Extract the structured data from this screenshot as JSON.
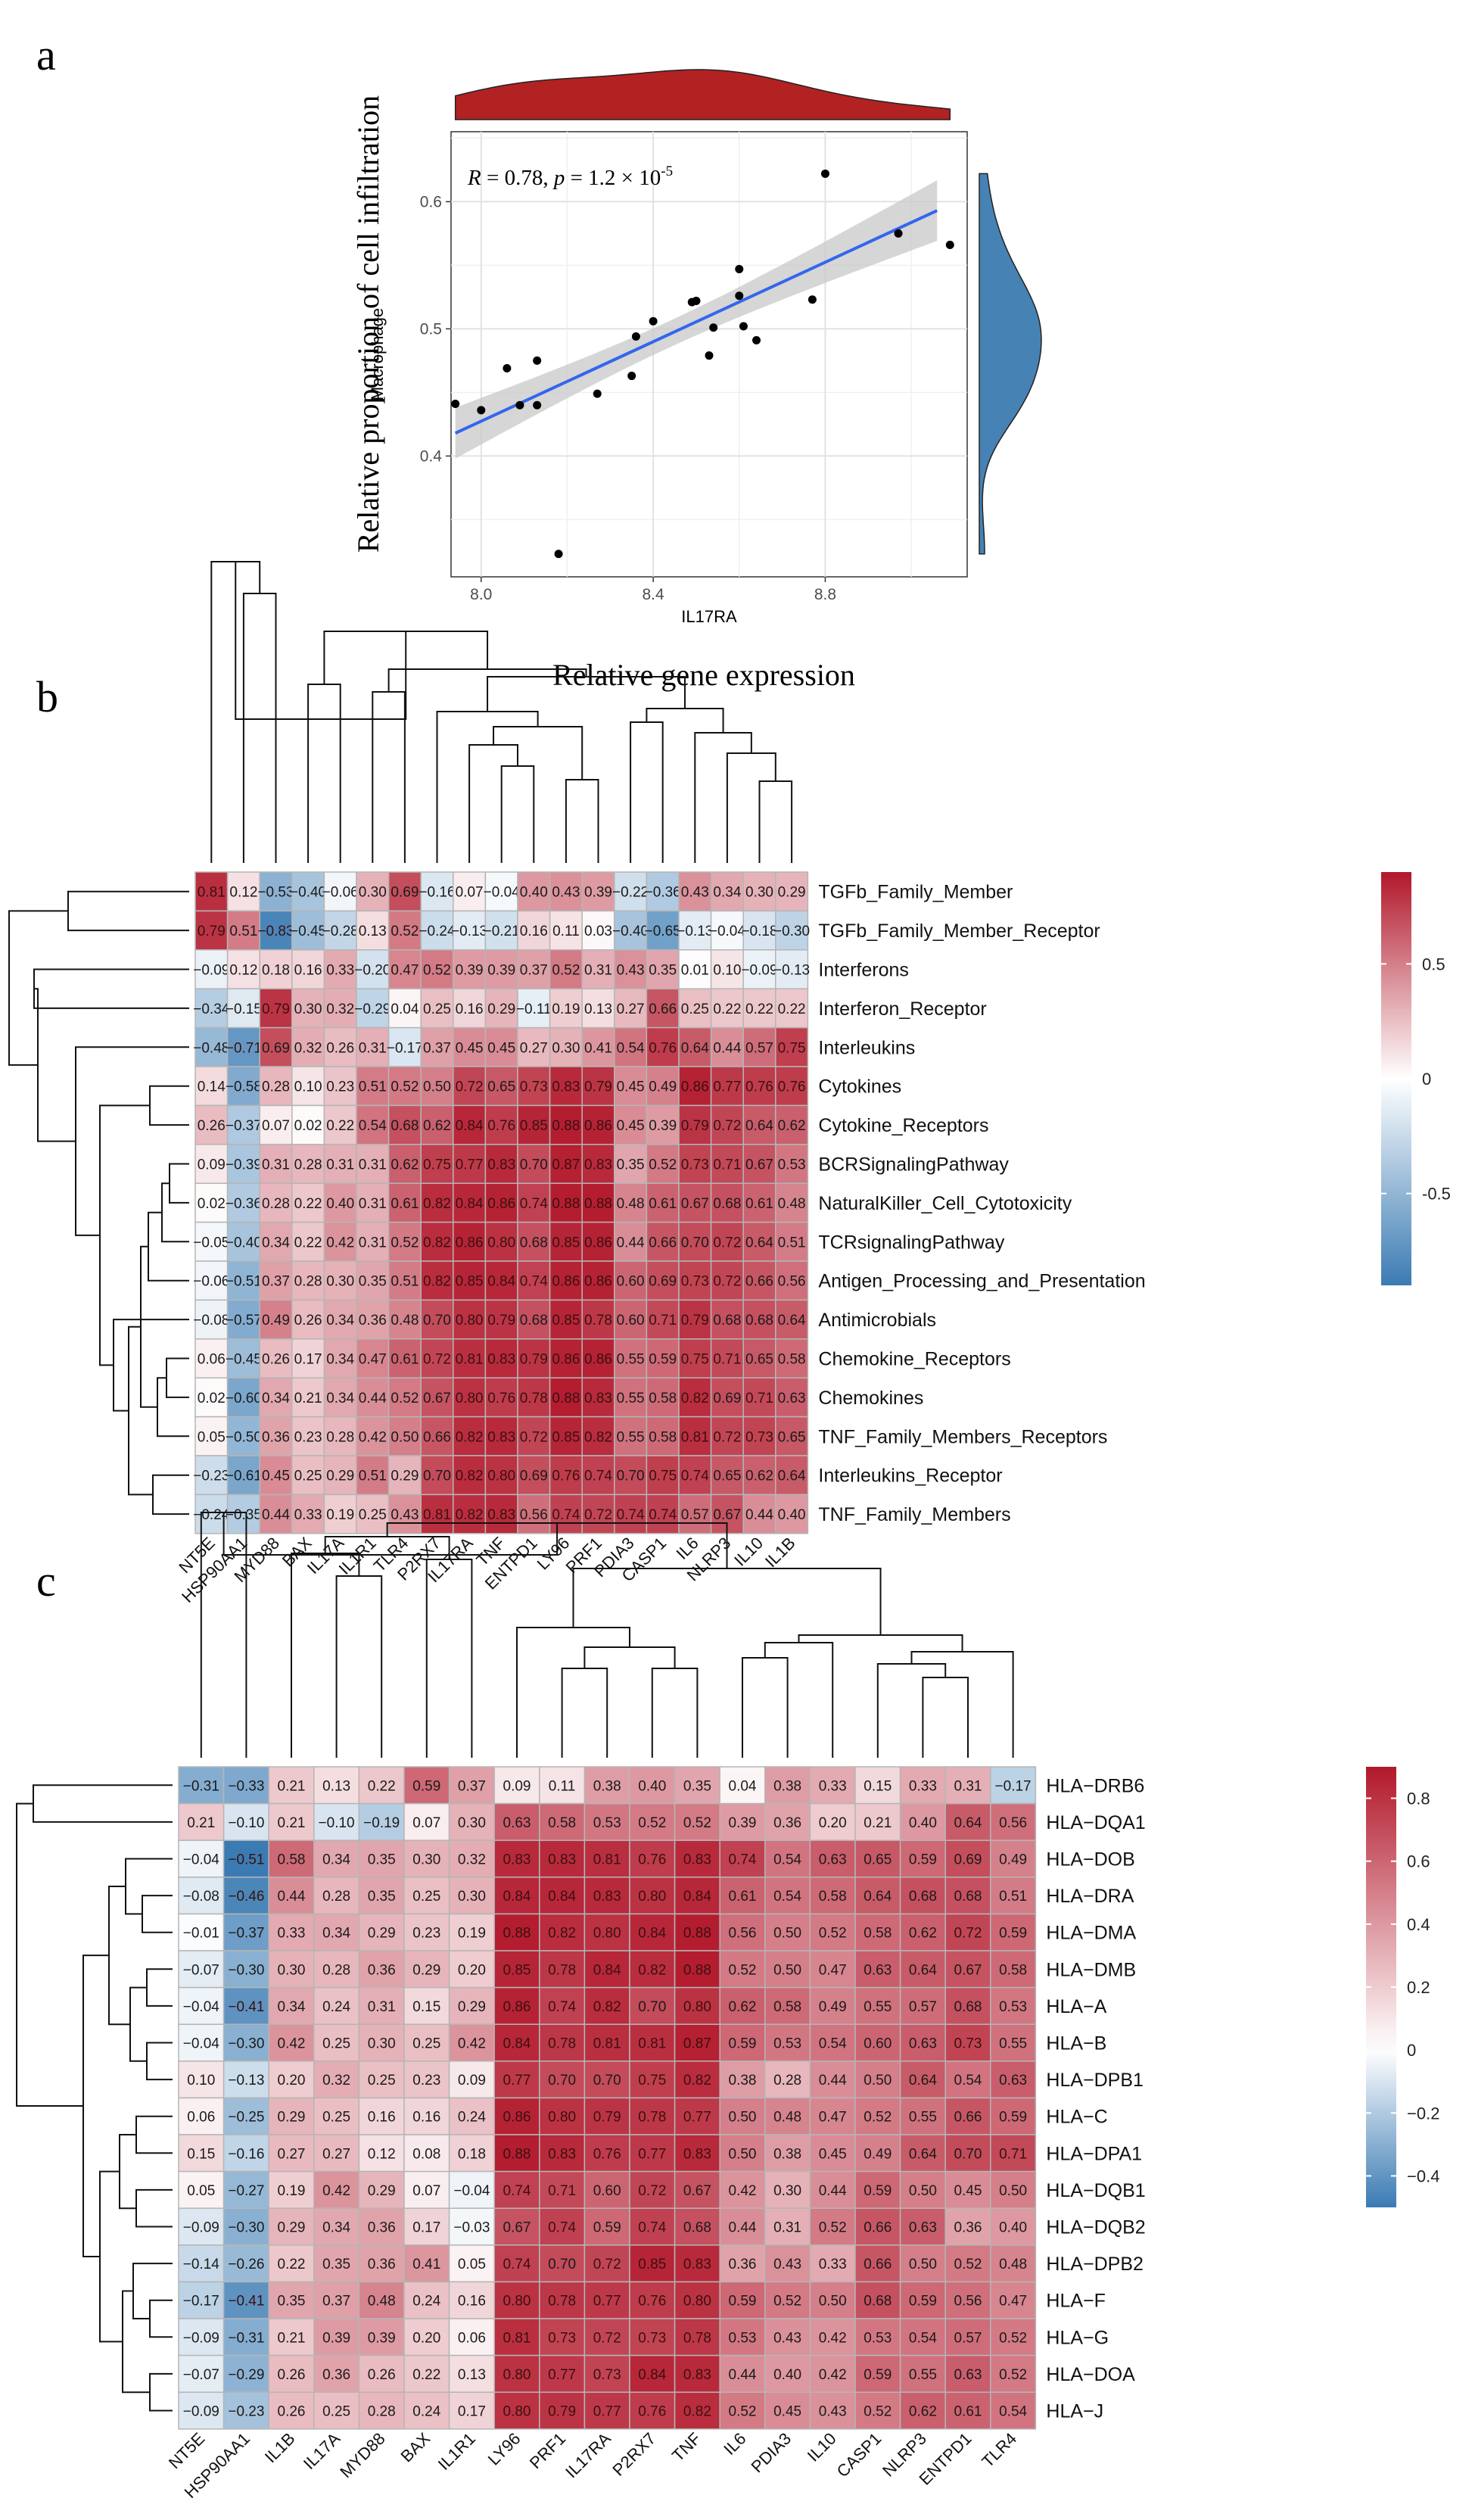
{
  "panels": {
    "a": "a",
    "b": "b",
    "c": "c"
  },
  "colors": {
    "low": "#3b7bb3",
    "mid": "#ffffff",
    "high": "#b2182b",
    "line": "#3366ee",
    "density_top": "#b22222",
    "density_right": "#4682b4",
    "grid_border": "#b5b5b5"
  },
  "chart_data": [
    {
      "type": "scatter",
      "panel": "a",
      "outer_ylabel": "Relative proportion of  cell infiltration",
      "outer_xlabel": "Relative gene expression",
      "xlabel": "IL17RA",
      "ylabel": "Macrophage",
      "annotation": {
        "R": "R",
        "r_text": " = 0.78, ",
        "p": "p",
        "p_text": " = 1.2 × 10",
        "exp": "-5"
      },
      "xlim": [
        7.93,
        9.13
      ],
      "ylim": [
        0.305,
        0.655
      ],
      "xticks": [
        "8.0",
        "8.4",
        "8.8"
      ],
      "yticks": [
        "0.4",
        "0.5",
        "0.6"
      ],
      "x": [
        7.94,
        8.0,
        8.06,
        8.09,
        8.13,
        8.13,
        8.18,
        8.27,
        8.35,
        8.36,
        8.4,
        8.49,
        8.5,
        8.53,
        8.54,
        8.6,
        8.6,
        8.61,
        8.64,
        8.77,
        8.8,
        8.97,
        9.09
      ],
      "y": [
        0.441,
        0.436,
        0.469,
        0.44,
        0.44,
        0.475,
        0.323,
        0.449,
        0.463,
        0.494,
        0.506,
        0.521,
        0.522,
        0.479,
        0.501,
        0.526,
        0.547,
        0.502,
        0.491,
        0.523,
        0.622,
        0.575,
        0.566
      ],
      "fit": {
        "x": [
          7.94,
          9.06
        ],
        "y": [
          0.418,
          0.593
        ]
      }
    },
    {
      "type": "heatmap",
      "panel": "b",
      "columns": [
        "NT5E",
        "HSP90AA1",
        "MYD88",
        "BAX",
        "IL17A",
        "IL1R1",
        "TLR4",
        "P2RX7",
        "IL17RA",
        "TNF",
        "ENTPD1",
        "LY96",
        "PRF1",
        "PDIA3",
        "CASP1",
        "IL6",
        "NLRP3",
        "IL10",
        "IL1B"
      ],
      "rows": [
        "TGFb_Family_Member",
        "TGFb_Family_Member_Receptor",
        "Interferons",
        "Interferon_Receptor",
        "Interleukins",
        "Cytokines",
        "Cytokine_Receptors",
        "BCRSignalingPathway",
        "NaturalKiller_Cell_Cytotoxicity",
        "TCRsignalingPathway",
        "Antigen_Processing_and_Presentation",
        "Antimicrobials",
        "Chemokine_Receptors",
        "Chemokines",
        "TNF_Family_Members_Receptors",
        "Interleukins_Receptor",
        "TNF_Family_Members"
      ],
      "values": [
        [
          "0.81",
          "0.12",
          "-0.53",
          "-0.40",
          "-0.06",
          "0.30",
          "0.69",
          "-0.16",
          "0.07",
          "-0.04",
          "0.40",
          "0.43",
          "0.39",
          "-0.22",
          "-0.36",
          "0.43",
          "0.34",
          "0.30",
          "0.29"
        ],
        [
          "0.79",
          "0.51",
          "-0.83",
          "-0.45",
          "-0.28",
          "0.13",
          "0.52",
          "-0.24",
          "-0.13",
          "-0.21",
          "0.16",
          "0.11",
          "0.03",
          "-0.40",
          "-0.65",
          "-0.13",
          "-0.04",
          "-0.18",
          "-0.30"
        ],
        [
          "-0.09",
          "0.12",
          "0.18",
          "0.16",
          "0.33",
          "-0.20",
          "0.47",
          "0.52",
          "0.39",
          "0.39",
          "0.37",
          "0.52",
          "0.31",
          "0.43",
          "0.35",
          "0.01",
          "0.10",
          "-0.09",
          "-0.13"
        ],
        [
          "-0.34",
          "-0.15",
          "0.79",
          "0.30",
          "0.32",
          "-0.29",
          "0.04",
          "0.25",
          "0.16",
          "0.29",
          "-0.11",
          "0.19",
          "0.13",
          "0.27",
          "0.66",
          "0.25",
          "0.22",
          "0.22",
          "0.22"
        ],
        [
          "-0.48",
          "-0.71",
          "0.69",
          "0.32",
          "0.26",
          "0.31",
          "-0.17",
          "0.37",
          "0.45",
          "0.45",
          "0.27",
          "0.30",
          "0.41",
          "0.54",
          "0.76",
          "0.64",
          "0.44",
          "0.57",
          "0.75"
        ],
        [
          "0.14",
          "-0.58",
          "0.28",
          "0.10",
          "0.23",
          "0.51",
          "0.52",
          "0.50",
          "0.72",
          "0.65",
          "0.73",
          "0.83",
          "0.79",
          "0.45",
          "0.49",
          "0.86",
          "0.77",
          "0.76",
          "0.76"
        ],
        [
          "0.26",
          "-0.37",
          "0.07",
          "0.02",
          "0.22",
          "0.54",
          "0.68",
          "0.62",
          "0.84",
          "0.76",
          "0.85",
          "0.88",
          "0.86",
          "0.45",
          "0.39",
          "0.79",
          "0.72",
          "0.64",
          "0.62"
        ],
        [
          "0.09",
          "-0.39",
          "0.31",
          "0.28",
          "0.31",
          "0.31",
          "0.62",
          "0.75",
          "0.77",
          "0.83",
          "0.70",
          "0.87",
          "0.83",
          "0.35",
          "0.52",
          "0.73",
          "0.71",
          "0.67",
          "0.53"
        ],
        [
          "0.02",
          "-0.36",
          "0.28",
          "0.22",
          "0.40",
          "0.31",
          "0.61",
          "0.82",
          "0.84",
          "0.86",
          "0.74",
          "0.88",
          "0.88",
          "0.48",
          "0.61",
          "0.67",
          "0.68",
          "0.61",
          "0.48"
        ],
        [
          "-0.05",
          "-0.40",
          "0.34",
          "0.22",
          "0.42",
          "0.31",
          "0.52",
          "0.82",
          "0.86",
          "0.80",
          "0.68",
          "0.85",
          "0.86",
          "0.44",
          "0.66",
          "0.70",
          "0.72",
          "0.64",
          "0.51"
        ],
        [
          "-0.06",
          "-0.51",
          "0.37",
          "0.28",
          "0.30",
          "0.35",
          "0.51",
          "0.82",
          "0.85",
          "0.84",
          "0.74",
          "0.86",
          "0.86",
          "0.60",
          "0.69",
          "0.73",
          "0.72",
          "0.66",
          "0.56"
        ],
        [
          "-0.08",
          "-0.57",
          "0.49",
          "0.26",
          "0.34",
          "0.36",
          "0.48",
          "0.70",
          "0.80",
          "0.79",
          "0.68",
          "0.85",
          "0.78",
          "0.60",
          "0.71",
          "0.79",
          "0.68",
          "0.68",
          "0.64"
        ],
        [
          "0.06",
          "-0.45",
          "0.26",
          "0.17",
          "0.34",
          "0.47",
          "0.61",
          "0.72",
          "0.81",
          "0.83",
          "0.79",
          "0.86",
          "0.86",
          "0.55",
          "0.59",
          "0.75",
          "0.71",
          "0.65",
          "0.58"
        ],
        [
          "0.02",
          "-0.60",
          "0.34",
          "0.21",
          "0.34",
          "0.44",
          "0.52",
          "0.67",
          "0.80",
          "0.76",
          "0.78",
          "0.88",
          "0.83",
          "0.55",
          "0.58",
          "0.82",
          "0.69",
          "0.71",
          "0.63"
        ],
        [
          "0.05",
          "-0.50",
          "0.36",
          "0.23",
          "0.28",
          "0.42",
          "0.50",
          "0.66",
          "0.82",
          "0.83",
          "0.72",
          "0.85",
          "0.82",
          "0.55",
          "0.58",
          "0.81",
          "0.72",
          "0.73",
          "0.65"
        ],
        [
          "-0.23",
          "-0.61",
          "0.45",
          "0.25",
          "0.29",
          "0.51",
          "0.29",
          "0.70",
          "0.82",
          "0.80",
          "0.69",
          "0.76",
          "0.74",
          "0.70",
          "0.75",
          "0.74",
          "0.65",
          "0.62",
          "0.64"
        ],
        [
          "-0.24",
          "-0.35",
          "0.44",
          "0.33",
          "0.19",
          "0.25",
          "0.43",
          "0.81",
          "0.82",
          "0.83",
          "0.56",
          "0.74",
          "0.72",
          "0.74",
          "0.74",
          "0.57",
          "0.67",
          "0.44",
          "0.40"
        ]
      ],
      "legend_ticks": [
        "0.5",
        "0",
        "-0.5"
      ],
      "legend_range": [
        -0.9,
        0.9
      ]
    },
    {
      "type": "heatmap",
      "panel": "c",
      "columns": [
        "NT5E",
        "HSP90AA1",
        "IL1B",
        "IL17A",
        "MYD88",
        "BAX",
        "IL1R1",
        "LY96",
        "PRF1",
        "IL17RA",
        "P2RX7",
        "TNF",
        "IL6",
        "PDIA3",
        "IL10",
        "CASP1",
        "NLRP3",
        "ENTPD1",
        "TLR4"
      ],
      "rows": [
        "HLA−DRB6",
        "HLA−DQA1",
        "HLA−DOB",
        "HLA−DRA",
        "HLA−DMA",
        "HLA−DMB",
        "HLA−A",
        "HLA−B",
        "HLA−DPB1",
        "HLA−C",
        "HLA−DPA1",
        "HLA−DQB1",
        "HLA−DQB2",
        "HLA−DPB2",
        "HLA−F",
        "HLA−G",
        "HLA−DOA",
        "HLA−J"
      ],
      "values": [
        [
          "-0.31",
          "-0.33",
          "0.21",
          "0.13",
          "0.22",
          "0.59",
          "0.37",
          "0.09",
          "0.11",
          "0.38",
          "0.40",
          "0.35",
          "0.04",
          "0.38",
          "0.33",
          "0.15",
          "0.33",
          "0.31",
          "-0.17"
        ],
        [
          "0.21",
          "-0.10",
          "0.21",
          "-0.10",
          "-0.19",
          "0.07",
          "0.30",
          "0.63",
          "0.58",
          "0.53",
          "0.52",
          "0.52",
          "0.39",
          "0.36",
          "0.20",
          "0.21",
          "0.40",
          "0.64",
          "0.56"
        ],
        [
          "-0.04",
          "-0.51",
          "0.58",
          "0.34",
          "0.35",
          "0.30",
          "0.32",
          "0.83",
          "0.83",
          "0.81",
          "0.76",
          "0.83",
          "0.74",
          "0.54",
          "0.63",
          "0.65",
          "0.59",
          "0.69",
          "0.49"
        ],
        [
          "-0.08",
          "-0.46",
          "0.44",
          "0.28",
          "0.35",
          "0.25",
          "0.30",
          "0.84",
          "0.84",
          "0.83",
          "0.80",
          "0.84",
          "0.61",
          "0.54",
          "0.58",
          "0.64",
          "0.68",
          "0.68",
          "0.51"
        ],
        [
          "-0.01",
          "-0.37",
          "0.33",
          "0.34",
          "0.29",
          "0.23",
          "0.19",
          "0.88",
          "0.82",
          "0.80",
          "0.84",
          "0.88",
          "0.56",
          "0.50",
          "0.52",
          "0.58",
          "0.62",
          "0.72",
          "0.59"
        ],
        [
          "-0.07",
          "-0.30",
          "0.30",
          "0.28",
          "0.36",
          "0.29",
          "0.20",
          "0.85",
          "0.78",
          "0.84",
          "0.82",
          "0.88",
          "0.52",
          "0.50",
          "0.47",
          "0.63",
          "0.64",
          "0.67",
          "0.58"
        ],
        [
          "-0.04",
          "-0.41",
          "0.34",
          "0.24",
          "0.31",
          "0.15",
          "0.29",
          "0.86",
          "0.74",
          "0.82",
          "0.70",
          "0.80",
          "0.62",
          "0.58",
          "0.49",
          "0.55",
          "0.57",
          "0.68",
          "0.53"
        ],
        [
          "-0.04",
          "-0.30",
          "0.42",
          "0.25",
          "0.30",
          "0.25",
          "0.42",
          "0.84",
          "0.78",
          "0.81",
          "0.81",
          "0.87",
          "0.59",
          "0.53",
          "0.54",
          "0.60",
          "0.63",
          "0.73",
          "0.55"
        ],
        [
          "0.10",
          "-0.13",
          "0.20",
          "0.32",
          "0.25",
          "0.23",
          "0.09",
          "0.77",
          "0.70",
          "0.70",
          "0.75",
          "0.82",
          "0.38",
          "0.28",
          "0.44",
          "0.50",
          "0.64",
          "0.54",
          "0.63"
        ],
        [
          "0.06",
          "-0.25",
          "0.29",
          "0.25",
          "0.16",
          "0.16",
          "0.24",
          "0.86",
          "0.80",
          "0.79",
          "0.78",
          "0.77",
          "0.50",
          "0.48",
          "0.47",
          "0.52",
          "0.55",
          "0.66",
          "0.59"
        ],
        [
          "0.15",
          "-0.16",
          "0.27",
          "0.27",
          "0.12",
          "0.08",
          "0.18",
          "0.88",
          "0.83",
          "0.76",
          "0.77",
          "0.83",
          "0.50",
          "0.38",
          "0.45",
          "0.49",
          "0.64",
          "0.70",
          "0.71"
        ],
        [
          "0.05",
          "-0.27",
          "0.19",
          "0.42",
          "0.29",
          "0.07",
          "-0.04",
          "0.74",
          "0.71",
          "0.60",
          "0.72",
          "0.67",
          "0.42",
          "0.30",
          "0.44",
          "0.59",
          "0.50",
          "0.45",
          "0.50"
        ],
        [
          "-0.09",
          "-0.30",
          "0.29",
          "0.34",
          "0.36",
          "0.17",
          "-0.03",
          "0.67",
          "0.74",
          "0.59",
          "0.74",
          "0.68",
          "0.44",
          "0.31",
          "0.52",
          "0.66",
          "0.63",
          "0.36",
          "0.40"
        ],
        [
          "-0.14",
          "-0.26",
          "0.22",
          "0.35",
          "0.36",
          "0.41",
          "0.05",
          "0.74",
          "0.70",
          "0.72",
          "0.85",
          "0.83",
          "0.36",
          "0.43",
          "0.33",
          "0.66",
          "0.50",
          "0.52",
          "0.48"
        ],
        [
          "-0.17",
          "-0.41",
          "0.35",
          "0.37",
          "0.48",
          "0.24",
          "0.16",
          "0.80",
          "0.78",
          "0.77",
          "0.76",
          "0.80",
          "0.59",
          "0.52",
          "0.50",
          "0.68",
          "0.59",
          "0.56",
          "0.47"
        ],
        [
          "-0.09",
          "-0.31",
          "0.21",
          "0.39",
          "0.39",
          "0.20",
          "0.06",
          "0.81",
          "0.73",
          "0.72",
          "0.73",
          "0.78",
          "0.53",
          "0.43",
          "0.42",
          "0.53",
          "0.54",
          "0.57",
          "0.52"
        ],
        [
          "-0.07",
          "-0.29",
          "0.26",
          "0.36",
          "0.26",
          "0.22",
          "0.13",
          "0.80",
          "0.77",
          "0.73",
          "0.84",
          "0.83",
          "0.44",
          "0.40",
          "0.42",
          "0.59",
          "0.55",
          "0.63",
          "0.52"
        ],
        [
          "-0.09",
          "-0.23",
          "0.26",
          "0.25",
          "0.28",
          "0.24",
          "0.17",
          "0.80",
          "0.79",
          "0.77",
          "0.76",
          "0.82",
          "0.52",
          "0.45",
          "0.43",
          "0.52",
          "0.62",
          "0.61",
          "0.54"
        ]
      ],
      "legend_ticks": [
        "0.8",
        "0.6",
        "0.4",
        "0.2",
        "0",
        "−0.2",
        "−0.4"
      ],
      "legend_range": [
        -0.5,
        0.9
      ]
    }
  ]
}
